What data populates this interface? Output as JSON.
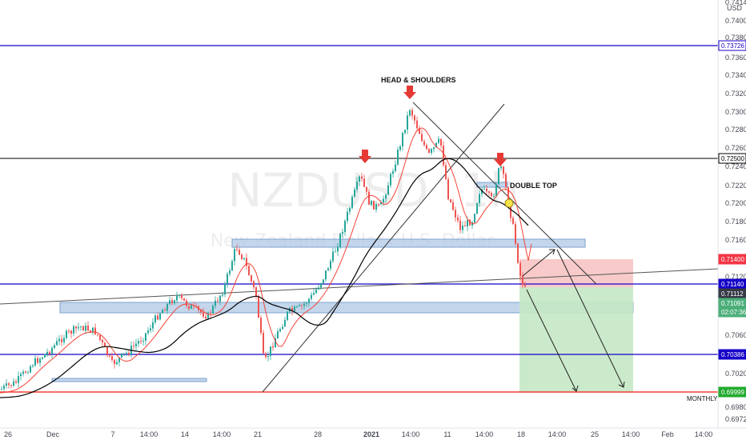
{
  "symbol_watermark": "NZDUSD",
  "timeframe_watermark": "1h",
  "pair_watermark": "New Zealand Dollar / U.S. Dollar",
  "currency_label": "USD",
  "price_axis_top": "0.74140",
  "price_axis": [
    "0.74000",
    "0.73800",
    "0.73600",
    "0.73400",
    "0.73200",
    "0.73000",
    "0.72800",
    "0.72600",
    "0.72400",
    "0.72200",
    "0.72000",
    "0.71800",
    "0.71600",
    "0.71200",
    "0.71000",
    "0.70800",
    "0.70600",
    "0.70200",
    "0.69800",
    "0.69720"
  ],
  "price_tags": [
    {
      "text": "0.73726",
      "style": "blue-outline"
    },
    {
      "text": "0.72500",
      "style": "dark-outline"
    },
    {
      "text": "0.71400",
      "style": "red"
    },
    {
      "text": "0.71140",
      "style": "navy"
    },
    {
      "text": "0.71112",
      "style": "dark"
    },
    {
      "text": "0.71091",
      "style": "green"
    },
    {
      "text": "02:07:36",
      "style": "green"
    },
    {
      "text": "0.70386",
      "style": "navy"
    },
    {
      "text": "0.69999",
      "style": "bright-green"
    }
  ],
  "time_axis": [
    "26",
    "Dec",
    "7",
    "14:00",
    "14",
    "14:00",
    "21",
    "28",
    "2021",
    "14:00",
    "11",
    "14:00",
    "18",
    "14:00",
    "25",
    "14:00",
    "Feb",
    "14:00"
  ],
  "annotations": {
    "head_shoulders": "HEAD & SHOULDERS",
    "double_top": "DOUBLE TOP",
    "monthly": "MONTHLY"
  },
  "colors": {
    "bull_candle": "#26a69a",
    "bear_candle": "#ef5350",
    "support_line_blue": "#1500c8",
    "resistance_line_black": "#000000",
    "monthly_line": "#f44336",
    "zone_fill": "#b5cce8",
    "stop_zone": "#f7c4c4",
    "target_zone": "#c5e8c5",
    "arrow_marker": "#e53935"
  }
}
